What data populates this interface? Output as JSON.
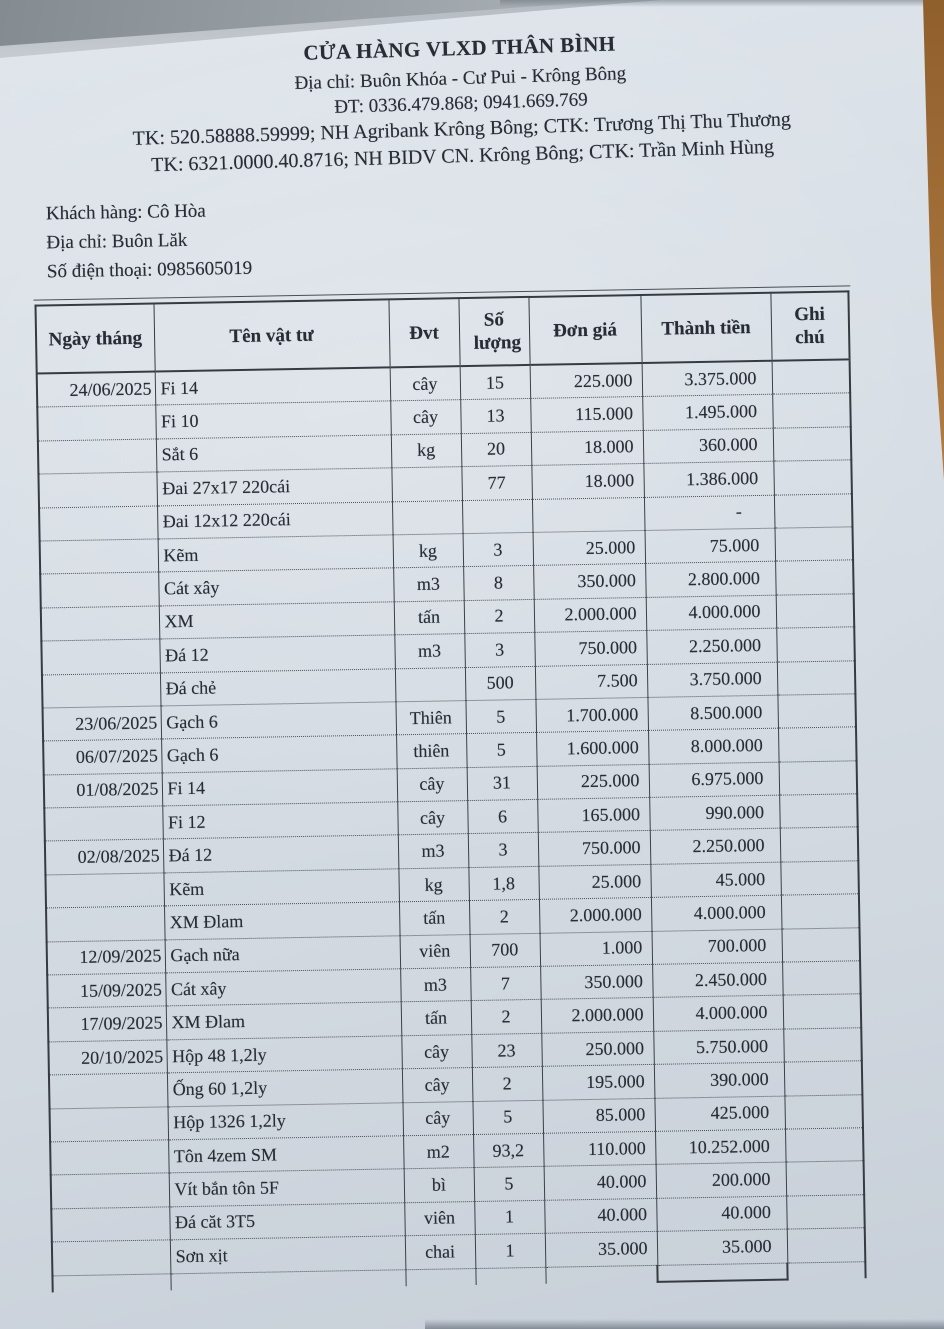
{
  "store": {
    "name": "CỬA HÀNG VLXD THÂN BÌNH",
    "address_line": "Địa chỉ: Buôn Khóa - Cư Pui - Krông Bông",
    "phone_line": "ĐT: 0336.479.868; 0941.669.769",
    "bank_line_1": "TK: 520.58888.59999; NH Agribank Krông Bông; CTK: Trương Thị Thu Thương",
    "bank_line_2": "TK: 6321.0000.40.8716; NH BIDV CN. Krông Bông; CTK: Trần Minh Hùng"
  },
  "customer": {
    "name_line": "Khách hàng: Cô Hòa",
    "address_line": "Địa chỉ: Buôn Lăk",
    "phone_line": "Số điện thoại: 0985605019"
  },
  "table": {
    "headers": [
      "Ngày tháng",
      "Tên vật tư",
      "Đvt",
      "Số lượng",
      "Đơn giá",
      "Thành tiền",
      "Ghi chú"
    ],
    "rows": [
      [
        "24/06/2025",
        "Fi 14",
        "cây",
        "15",
        "225.000",
        "3.375.000",
        ""
      ],
      [
        "",
        "Fi 10",
        "cây",
        "13",
        "115.000",
        "1.495.000",
        ""
      ],
      [
        "",
        "Sắt 6",
        "kg",
        "20",
        "18.000",
        "360.000",
        ""
      ],
      [
        "",
        "Đai 27x17 220cái",
        "",
        "77",
        "18.000",
        "1.386.000",
        ""
      ],
      [
        "",
        "Đai 12x12 220cái",
        "",
        "",
        "",
        "-",
        ""
      ],
      [
        "",
        "Kẽm",
        "kg",
        "3",
        "25.000",
        "75.000",
        ""
      ],
      [
        "",
        "Cát xây",
        "m3",
        "8",
        "350.000",
        "2.800.000",
        ""
      ],
      [
        "",
        "XM",
        "tấn",
        "2",
        "2.000.000",
        "4.000.000",
        ""
      ],
      [
        "",
        "Đá 12",
        "m3",
        "3",
        "750.000",
        "2.250.000",
        ""
      ],
      [
        "",
        "Đá chẻ",
        "",
        "500",
        "7.500",
        "3.750.000",
        ""
      ],
      [
        "23/06/2025",
        "Gạch 6",
        "Thiên",
        "5",
        "1.700.000",
        "8.500.000",
        ""
      ],
      [
        "06/07/2025",
        "Gạch 6",
        "thiên",
        "5",
        "1.600.000",
        "8.000.000",
        ""
      ],
      [
        "01/08/2025",
        "Fi 14",
        "cây",
        "31",
        "225.000",
        "6.975.000",
        ""
      ],
      [
        "",
        "Fi 12",
        "cây",
        "6",
        "165.000",
        "990.000",
        ""
      ],
      [
        "02/08/2025",
        "Đá 12",
        "m3",
        "3",
        "750.000",
        "2.250.000",
        ""
      ],
      [
        "",
        "Kẽm",
        "kg",
        "1,8",
        "25.000",
        "45.000",
        ""
      ],
      [
        "",
        "XM Đlam",
        "tấn",
        "2",
        "2.000.000",
        "4.000.000",
        ""
      ],
      [
        "12/09/2025",
        "Gạch nữa",
        "viên",
        "700",
        "1.000",
        "700.000",
        ""
      ],
      [
        "15/09/2025",
        "Cát xây",
        "m3",
        "7",
        "350.000",
        "2.450.000",
        ""
      ],
      [
        "17/09/2025",
        "XM Đlam",
        "tấn",
        "2",
        "2.000.000",
        "4.000.000",
        ""
      ],
      [
        "20/10/2025",
        "Hộp 48 1,2ly",
        "cây",
        "23",
        "250.000",
        "5.750.000",
        ""
      ],
      [
        "",
        "Ống 60 1,2ly",
        "cây",
        "2",
        "195.000",
        "390.000",
        ""
      ],
      [
        "",
        "Hộp 1326 1,2ly",
        "cây",
        "5",
        "85.000",
        "425.000",
        ""
      ],
      [
        "",
        "Tôn 4zem SM",
        "m2",
        "93,2",
        "110.000",
        "10.252.000",
        ""
      ],
      [
        "",
        "Vít bắn tôn 5F",
        "bì",
        "5",
        "40.000",
        "200.000",
        ""
      ],
      [
        "",
        "Đá căt 3T5",
        "viên",
        "1",
        "40.000",
        "40.000",
        ""
      ],
      [
        "",
        "Sơn xịt",
        "chai",
        "1",
        "35.000",
        "35.000",
        ""
      ]
    ]
  },
  "colors": {
    "paper": "#d7dee5",
    "ink": "#272c35",
    "wood_edge": "#a9743c"
  }
}
